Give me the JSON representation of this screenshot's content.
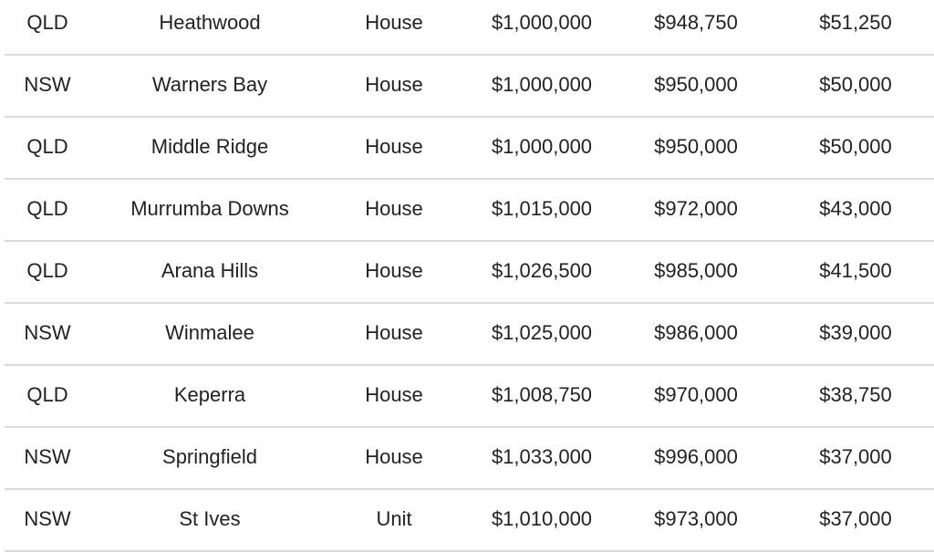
{
  "table": {
    "rows": [
      [
        "QLD",
        "Heathwood",
        "House",
        "$1,000,000",
        "$948,750",
        "$51,250"
      ],
      [
        "NSW",
        "Warners Bay",
        "House",
        "$1,000,000",
        "$950,000",
        "$50,000"
      ],
      [
        "QLD",
        "Middle Ridge",
        "House",
        "$1,000,000",
        "$950,000",
        "$50,000"
      ],
      [
        "QLD",
        "Murrumba Downs",
        "House",
        "$1,015,000",
        "$972,000",
        "$43,000"
      ],
      [
        "QLD",
        "Arana Hills",
        "House",
        "$1,026,500",
        "$985,000",
        "$41,500"
      ],
      [
        "NSW",
        "Winmalee",
        "House",
        "$1,025,000",
        "$986,000",
        "$39,000"
      ],
      [
        "QLD",
        "Keperra",
        "House",
        "$1,008,750",
        "$970,000",
        "$38,750"
      ],
      [
        "NSW",
        "Springfield",
        "House",
        "$1,033,000",
        "$996,000",
        "$37,000"
      ],
      [
        "NSW",
        "St Ives",
        "Unit",
        "$1,010,000",
        "$973,000",
        "$37,000"
      ]
    ]
  }
}
